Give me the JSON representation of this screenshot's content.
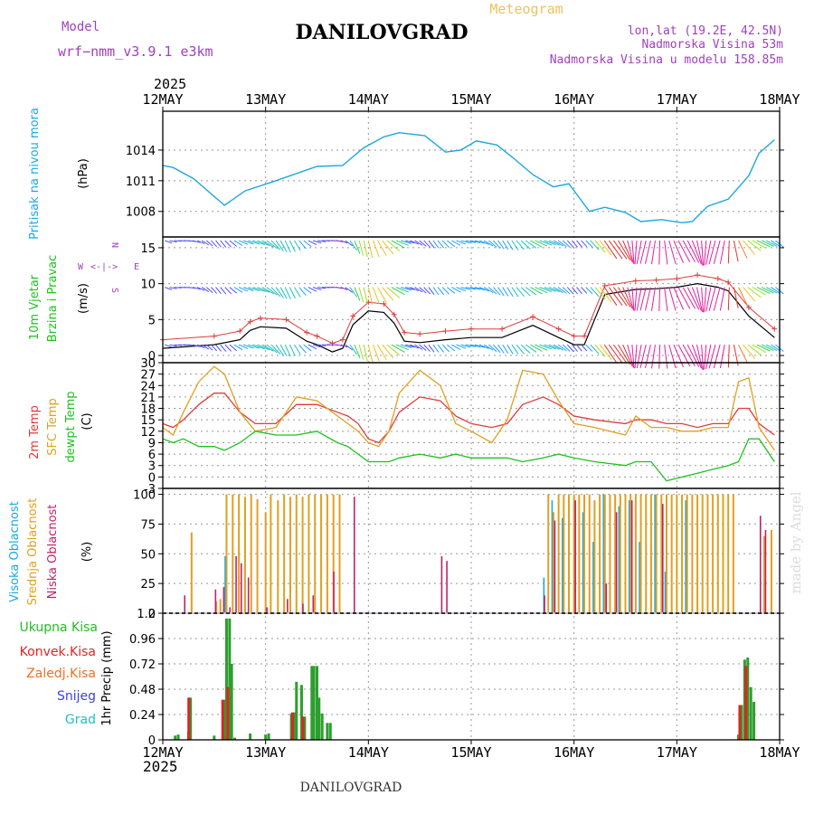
{
  "header": {
    "model_label": "Model",
    "model_name": "wrf−nmm_v3.9.1  e3km",
    "title": "DANILOVGRAD",
    "meteogram_label": "Meteogram",
    "lonlat": "lon,lat (19.2E, 42.5N)",
    "altitude": "Nadmorska Visina 53m",
    "model_altitude": "Nadmorska Visina u modelu 158.85m",
    "year_top": "2025",
    "year_bottom": "2025",
    "footer_station": "DANILOVGRAD",
    "watermark": "made by Angel"
  },
  "colors": {
    "pressure": "#1ca8e0",
    "temp2m": "#e23b3b",
    "sfc": "#e0a020",
    "dew": "#20c020",
    "cloud_high": "#1ca8e0",
    "cloud_mid": "#e0a020",
    "cloud_low": "#c0206c",
    "precip_total": "#2e9e2e",
    "precip_conv": "#e02424",
    "wind_label": "#20c020",
    "label_purple": "#a040c0"
  },
  "days": [
    "12MAY",
    "13MAY",
    "14MAY",
    "15MAY",
    "16MAY",
    "17MAY",
    "18MAY"
  ],
  "chart_data": [
    {
      "type": "line",
      "id": "pressure",
      "title": "Pritisak na nivou mora",
      "ylabel": "(hPa)",
      "ylim": [
        1005.5,
        1017.8
      ],
      "yticks": [
        1008,
        1011,
        1014
      ],
      "x_days": [
        0,
        0.1,
        0.3,
        0.6,
        0.8,
        1.1,
        1.5,
        1.75,
        1.95,
        2.15,
        2.3,
        2.55,
        2.75,
        2.9,
        3.05,
        3.25,
        3.4,
        3.6,
        3.8,
        3.95,
        4.15,
        4.3,
        4.5,
        4.65,
        4.85,
        5.05,
        5.15,
        5.3,
        5.5,
        5.7,
        5.8,
        5.95
      ],
      "series": [
        {
          "name": "Pritisak",
          "values": [
            1012.5,
            1012.3,
            1011.2,
            1008.6,
            1010,
            1011,
            1012.4,
            1012.5,
            1014.2,
            1015.3,
            1015.7,
            1015.4,
            1013.8,
            1014.0,
            1014.9,
            1014.5,
            1013.3,
            1011.6,
            1010.4,
            1010.7,
            1008.0,
            1008.4,
            1007.9,
            1007.0,
            1007.2,
            1006.9,
            1007.0,
            1008.5,
            1009.2,
            1011.5,
            1013.7,
            1015.0
          ]
        }
      ]
    },
    {
      "type": "line",
      "id": "wind",
      "title": "10m Vjetar Brzina i Pravac",
      "ylabel": "(m/s)",
      "ylim": [
        -1,
        16.5
      ],
      "yticks": [
        0,
        5,
        10,
        15
      ],
      "compass": {
        "n": "N",
        "s": "S",
        "w": "W",
        "e": "E"
      },
      "x_days": [
        0,
        0.5,
        0.75,
        0.85,
        0.95,
        1.2,
        1.4,
        1.5,
        1.65,
        1.75,
        1.85,
        2.0,
        2.15,
        2.25,
        2.35,
        2.5,
        2.75,
        3.0,
        3.3,
        3.6,
        3.85,
        4.0,
        4.1,
        4.3,
        4.6,
        4.8,
        5.0,
        5.2,
        5.4,
        5.5,
        5.7,
        5.95
      ],
      "series": [
        {
          "name": "Brzina",
          "values": [
            1.0,
            1.5,
            2.2,
            3.5,
            4.0,
            3.8,
            2.0,
            1.5,
            0.5,
            1.0,
            4.3,
            6.2,
            6.0,
            4.5,
            2.0,
            1.8,
            2.2,
            2.5,
            2.5,
            4.2,
            2.5,
            1.5,
            1.5,
            8.5,
            9.2,
            9.3,
            9.5,
            10.0,
            9.5,
            9.0,
            5.5,
            2.5
          ]
        }
      ]
    },
    {
      "type": "line",
      "id": "temperature",
      "title": "2m Temp / SFC Temp / dewpt Temp",
      "ylabel": "(C)",
      "ylim": [
        -3,
        30
      ],
      "yticks": [
        -3,
        0,
        3,
        6,
        9,
        12,
        15,
        18,
        21,
        24,
        27,
        30
      ],
      "x_days": [
        0,
        0.1,
        0.2,
        0.35,
        0.5,
        0.6,
        0.75,
        0.9,
        1.1,
        1.3,
        1.5,
        1.7,
        1.8,
        1.9,
        2.0,
        2.1,
        2.2,
        2.3,
        2.5,
        2.7,
        2.85,
        3.0,
        3.2,
        3.35,
        3.5,
        3.7,
        3.85,
        4.0,
        4.2,
        4.5,
        4.6,
        4.75,
        4.9,
        5.05,
        5.2,
        5.35,
        5.5,
        5.6,
        5.7,
        5.8,
        5.95
      ],
      "series": [
        {
          "name": "2m Temp",
          "values": [
            14,
            13,
            15,
            19,
            22,
            22,
            17,
            14,
            14,
            19,
            19,
            17,
            16,
            14,
            10,
            9,
            12,
            17,
            21,
            20,
            16,
            14,
            13,
            14,
            19,
            21,
            19,
            16,
            15,
            14,
            15,
            15,
            14,
            14,
            13,
            14,
            14,
            18,
            18,
            14,
            11
          ]
        },
        {
          "name": "SFC Temp",
          "values": [
            13,
            11,
            17,
            25,
            29,
            27,
            17,
            12,
            13,
            21,
            20,
            16,
            14,
            12,
            9,
            8,
            12,
            22,
            28,
            24,
            14,
            12,
            9,
            15,
            28,
            27,
            20,
            14,
            13,
            11,
            16,
            13,
            13,
            12,
            12,
            13,
            13,
            25,
            26,
            13,
            7
          ]
        },
        {
          "name": "dewpt Temp",
          "values": [
            10,
            9,
            10,
            8,
            8,
            7,
            9,
            12,
            11,
            11,
            12,
            9,
            8,
            6,
            4,
            4,
            4,
            5,
            6,
            5,
            6,
            5,
            5,
            5,
            4,
            5,
            6,
            5,
            4,
            3,
            4,
            4,
            -1,
            0,
            1,
            2,
            3,
            4,
            10,
            10,
            4
          ]
        }
      ]
    },
    {
      "type": "bar",
      "id": "clouds",
      "title": "Visoka / Srednja / Niska Oblacnost",
      "ylabel": "(%)",
      "ylim": [
        0,
        105
      ],
      "yticks": [
        0,
        25,
        50,
        75,
        100
      ],
      "series": [
        {
          "name": "Visoka Oblacnost",
          "x_days": [
            0.62,
            0.63,
            3.72,
            3.8,
            3.9,
            4.1,
            4.2,
            4.3,
            4.45,
            4.55,
            4.65,
            4.8,
            4.9,
            5.1
          ],
          "values": [
            48,
            48,
            30,
            95,
            80,
            85,
            60,
            100,
            90,
            95,
            60,
            100,
            35,
            95
          ]
        },
        {
          "name": "Srednja Oblacnost",
          "x_days": [
            0.28,
            0.52,
            0.56,
            0.62,
            0.68,
            0.74,
            0.8,
            0.86,
            0.92,
            1.0,
            1.05,
            1.12,
            1.18,
            1.24,
            1.3,
            1.36,
            1.42,
            1.48,
            1.54,
            1.6,
            1.66,
            1.72,
            3.75,
            3.8,
            3.85,
            3.9,
            3.95,
            4.0,
            4.05,
            4.1,
            4.15,
            4.2,
            4.25,
            4.3,
            4.35,
            4.4,
            4.45,
            4.5,
            4.55,
            4.6,
            4.65,
            4.7,
            4.75,
            4.8,
            4.85,
            4.9,
            4.95,
            5.0,
            5.05,
            5.1,
            5.15,
            5.2,
            5.25,
            5.3,
            5.35,
            5.4,
            5.45,
            5.5,
            5.55,
            5.85,
            5.92
          ],
          "values": [
            68,
            10,
            12,
            100,
            100,
            100,
            98,
            100,
            96,
            85,
            100,
            95,
            100,
            98,
            100,
            98,
            100,
            100,
            100,
            100,
            100,
            100,
            100,
            85,
            100,
            100,
            100,
            100,
            100,
            100,
            100,
            95,
            100,
            100,
            100,
            100,
            100,
            100,
            100,
            100,
            100,
            100,
            100,
            100,
            100,
            100,
            100,
            100,
            100,
            100,
            100,
            100,
            100,
            100,
            100,
            100,
            100,
            100,
            100,
            65,
            70
          ]
        },
        {
          "name": "Niska Oblacnost",
          "x_days": [
            0.2,
            0.5,
            0.58,
            0.64,
            0.7,
            0.75,
            0.82,
            1.0,
            1.2,
            1.35,
            1.45,
            1.65,
            1.85,
            2.7,
            2.75,
            3.7,
            3.8,
            4.0,
            4.3,
            4.4,
            4.55,
            4.85,
            5.8,
            5.85
          ],
          "values": [
            15,
            20,
            22,
            5,
            48,
            42,
            30,
            5,
            12,
            8,
            15,
            35,
            98,
            48,
            44,
            15,
            78,
            95,
            25,
            85,
            95,
            92,
            82,
            70
          ]
        }
      ]
    },
    {
      "type": "bar",
      "id": "precip",
      "title": "1hr Precip",
      "ylabel": "1hr Precip (mm)",
      "ylim": [
        0,
        1.2
      ],
      "yticks": [
        0,
        0.24,
        0.48,
        0.72,
        0.96,
        1.2
      ],
      "legend": [
        "Ukupna Kisa",
        "Konvek.Kisa",
        "Zaledj.Kisa",
        "Snijeg",
        "Grad"
      ],
      "series": [
        {
          "name": "Ukupna Kisa",
          "x_days": [
            0.12,
            0.15,
            0.25,
            0.27,
            0.5,
            0.6,
            0.62,
            0.65,
            0.67,
            0.7,
            0.85,
            1.0,
            1.03,
            1.25,
            1.28,
            1.3,
            1.35,
            1.38,
            1.45,
            1.47,
            1.5,
            1.52,
            1.55,
            1.6,
            1.63,
            5.6,
            5.63,
            5.66,
            5.69,
            5.72,
            5.75
          ],
          "values": [
            0.04,
            0.05,
            0.08,
            0.4,
            0.04,
            0.38,
            1.15,
            1.15,
            0.72,
            0.02,
            0.06,
            0.05,
            0.06,
            0.25,
            0.26,
            0.55,
            0.52,
            0.22,
            0.7,
            0.7,
            0.7,
            0.4,
            0.25,
            0.16,
            0.16,
            0.05,
            0.33,
            0.76,
            0.78,
            0.5,
            0.36
          ]
        },
        {
          "name": "Konvek.Kisa",
          "x_days": [
            0.27,
            0.6,
            0.65,
            1.28,
            1.38,
            5.63,
            5.69
          ],
          "values": [
            0.4,
            0.38,
            0.5,
            0.26,
            0.22,
            0.33,
            0.7
          ]
        }
      ]
    }
  ]
}
